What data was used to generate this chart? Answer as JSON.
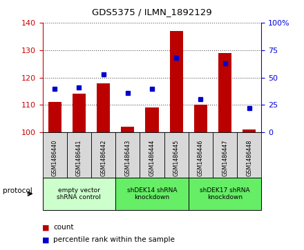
{
  "title": "GDS5375 / ILMN_1892129",
  "samples": [
    "GSM1486440",
    "GSM1486441",
    "GSM1486442",
    "GSM1486443",
    "GSM1486444",
    "GSM1486445",
    "GSM1486446",
    "GSM1486447",
    "GSM1486448"
  ],
  "counts": [
    111,
    114,
    118,
    102,
    109,
    137,
    110,
    129,
    101
  ],
  "percentiles": [
    40,
    41,
    53,
    36,
    40,
    68,
    30,
    63,
    22
  ],
  "ylim_left": [
    100,
    140
  ],
  "ylim_right": [
    0,
    100
  ],
  "yticks_left": [
    100,
    110,
    120,
    130,
    140
  ],
  "yticks_right": [
    0,
    25,
    50,
    75,
    100
  ],
  "groups": [
    {
      "label": "empty vector\nshRNA control",
      "start": 0,
      "end": 3,
      "color": "#ccffcc"
    },
    {
      "label": "shDEK14 shRNA\nknockdown",
      "start": 3,
      "end": 6,
      "color": "#66ee66"
    },
    {
      "label": "shDEK17 shRNA\nknockdown",
      "start": 6,
      "end": 9,
      "color": "#66ee66"
    }
  ],
  "bar_color": "#bb0000",
  "dot_color": "#0000cc",
  "bar_width": 0.55,
  "legend_count_label": "count",
  "legend_pct_label": "percentile rank within the sample",
  "protocol_label": "protocol",
  "background_color": "#ffffff",
  "plot_bg_color": "#ffffff",
  "grid_color": "#555555",
  "sample_box_color": "#d8d8d8",
  "right_axis_color": "#0000dd",
  "left_axis_color": "#cc0000"
}
